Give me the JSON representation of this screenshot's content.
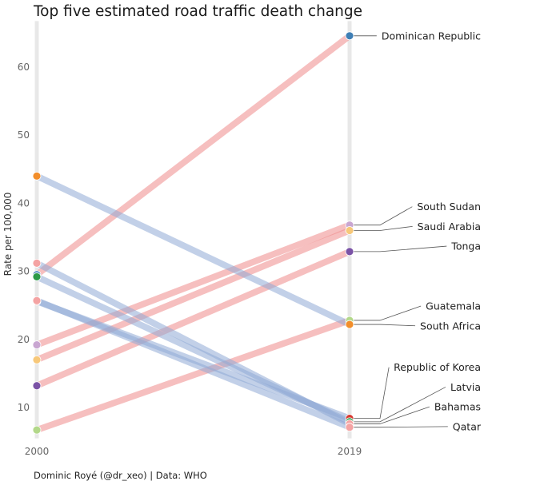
{
  "chart_data": {
    "type": "line",
    "title": "Top five estimated road traffic death change",
    "caption": "Dominic Royé (@dr_xeo) | Data: WHO",
    "xlabel": "",
    "ylabel": "Rate per 100,000",
    "x": [
      "2000",
      "2019"
    ],
    "ylim": [
      5,
      67
    ],
    "yticks": [
      10,
      20,
      30,
      40,
      50,
      60
    ],
    "grid": false,
    "legend": "none",
    "colors": {
      "increase": "#ef8a8a",
      "decrease": "#8fa9d6",
      "axis_bar": "#e8e8e8"
    },
    "series": [
      {
        "name": "Dominican Republic",
        "values": [
          29.5,
          64.6
        ],
        "change": "increase",
        "color": "#3f7fb5"
      },
      {
        "name": "South Sudan",
        "values": [
          19.2,
          36.8
        ],
        "change": "increase",
        "color": "#c9a6d1"
      },
      {
        "name": "Saudi Arabia",
        "values": [
          17.0,
          36.0
        ],
        "change": "increase",
        "color": "#f7c87a"
      },
      {
        "name": "Tonga",
        "values": [
          13.2,
          32.9
        ],
        "change": "increase",
        "color": "#7b53a6"
      },
      {
        "name": "Guatemala",
        "values": [
          6.7,
          22.8
        ],
        "change": "increase",
        "color": "#b3d88a"
      },
      {
        "name": "South Africa",
        "values": [
          44.0,
          22.2
        ],
        "change": "decrease",
        "color": "#f28e2b"
      },
      {
        "name": "Republic of Korea",
        "values": [
          25.6,
          8.4
        ],
        "change": "decrease",
        "color": "#d73a32"
      },
      {
        "name": "Latvia",
        "values": [
          29.2,
          7.9
        ],
        "change": "decrease",
        "color": "#2e9a48"
      },
      {
        "name": "Bahamas",
        "values": [
          31.2,
          7.6
        ],
        "change": "decrease",
        "color": "#f4a3a3"
      },
      {
        "name": "Qatar",
        "values": [
          25.7,
          7.1
        ],
        "change": "decrease",
        "color": "#f4a3a3"
      }
    ],
    "labels": [
      {
        "series": "Dominican Republic",
        "text": "Dominican Republic",
        "y": 64.6
      },
      {
        "series": "South Sudan",
        "text": "South Sudan",
        "y": 39.5
      },
      {
        "series": "Saudi Arabia",
        "text": "Saudi Arabia",
        "y": 36.6
      },
      {
        "series": "Tonga",
        "text": "Tonga",
        "y": 33.7
      },
      {
        "series": "Guatemala",
        "text": "Guatemala",
        "y": 24.9
      },
      {
        "series": "South Africa",
        "text": "South Africa",
        "y": 22.0
      },
      {
        "series": "Republic of Korea",
        "text": "Republic of Korea",
        "y": 15.9
      },
      {
        "series": "Latvia",
        "text": "Latvia",
        "y": 13.0
      },
      {
        "series": "Bahamas",
        "text": "Bahamas",
        "y": 10.1
      },
      {
        "series": "Qatar",
        "text": "Qatar",
        "y": 7.2
      }
    ]
  }
}
